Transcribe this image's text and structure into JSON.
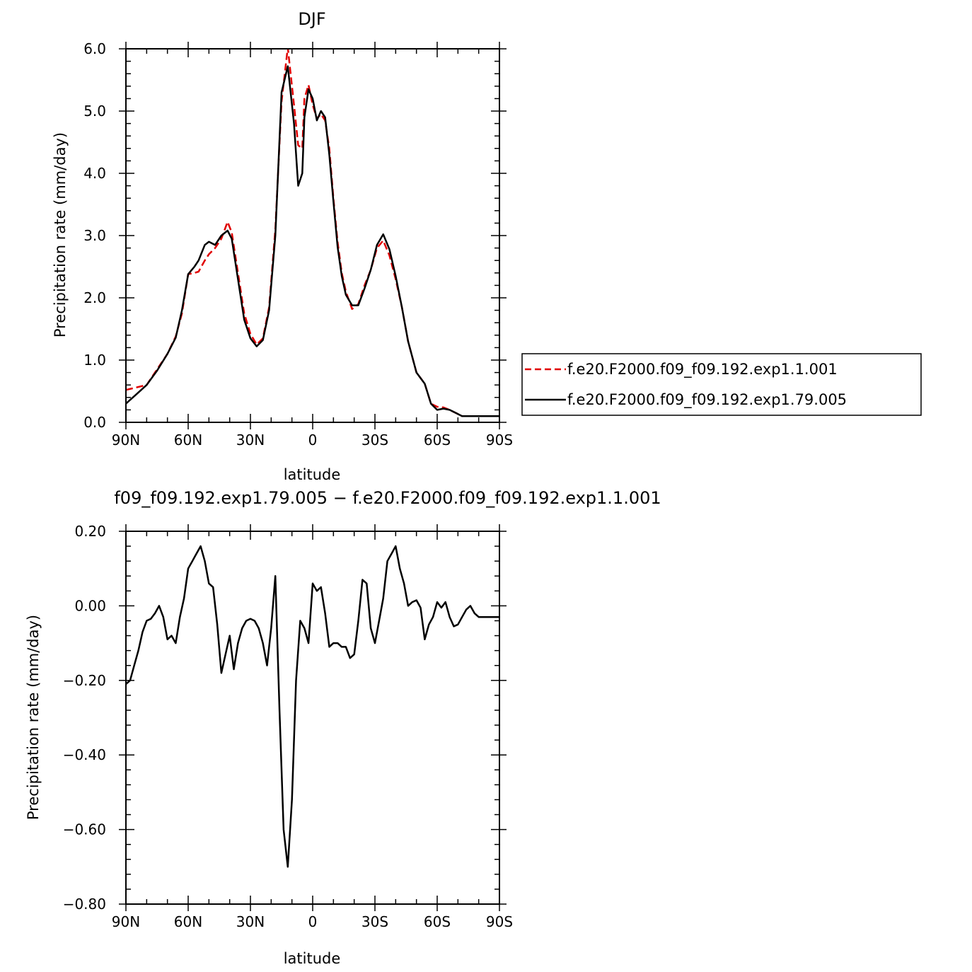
{
  "chart_data": [
    {
      "type": "line",
      "title": "DJF",
      "xlabel": "latitude",
      "ylabel": "Precipitation rate (mm/day)",
      "xlim": [
        -90,
        90
      ],
      "ylim": [
        0,
        6
      ],
      "x_ticks": [
        -90,
        -60,
        -30,
        0,
        30,
        60,
        90
      ],
      "x_tick_labels": [
        "90N",
        "60N",
        "30N",
        "0",
        "30S",
        "60S",
        "90S"
      ],
      "y_ticks": [
        0,
        1,
        2,
        3,
        4,
        5,
        6
      ],
      "y_tick_labels": [
        "0.0",
        "1.0",
        "2.0",
        "3.0",
        "4.0",
        "5.0",
        "6.0"
      ],
      "grid": false,
      "legend_position": "right",
      "series": [
        {
          "name": "f.e20.F2000.f09_f09.192.exp1.1.001",
          "color": "#e00000",
          "style": "dashed",
          "x": [
            -90,
            -85,
            -80,
            -75,
            -70,
            -66,
            -63,
            -60,
            -57,
            -55,
            -52,
            -50,
            -47,
            -44,
            -41,
            -39,
            -36,
            -33,
            -30,
            -27,
            -24,
            -21,
            -18,
            -15,
            -12,
            -9,
            -7,
            -5,
            -4,
            -2,
            0,
            2,
            4,
            6,
            8,
            10,
            12,
            14,
            16,
            19,
            22,
            25,
            28,
            31,
            34,
            37,
            40,
            43,
            46,
            50,
            54,
            57,
            60,
            63,
            66,
            69,
            72,
            75,
            78,
            81,
            84,
            87,
            90
          ],
          "y": [
            0.52,
            0.56,
            0.6,
            0.85,
            1.1,
            1.38,
            1.75,
            2.38,
            2.4,
            2.42,
            2.6,
            2.7,
            2.8,
            2.95,
            3.22,
            3.05,
            2.4,
            1.75,
            1.42,
            1.25,
            1.35,
            1.85,
            3.1,
            5.15,
            6.02,
            5.1,
            4.45,
            4.4,
            5.2,
            5.42,
            5.1,
            4.88,
            4.95,
            4.85,
            4.4,
            3.6,
            2.9,
            2.4,
            2.1,
            1.82,
            1.9,
            2.2,
            2.45,
            2.8,
            2.92,
            2.68,
            2.3,
            1.85,
            1.3,
            0.8,
            0.62,
            0.3,
            0.25,
            0.24,
            0.2,
            0.15,
            0.1,
            0.1,
            0.1,
            0.1,
            0.1,
            0.1,
            0.1
          ]
        },
        {
          "name": "f.e20.F2000.f09_f09.192.exp1.79.005",
          "color": "#000000",
          "style": "solid",
          "x": [
            -90,
            -85,
            -80,
            -75,
            -70,
            -66,
            -63,
            -60,
            -57,
            -55,
            -52,
            -50,
            -47,
            -44,
            -41,
            -39,
            -36,
            -33,
            -30,
            -27,
            -24,
            -21,
            -18,
            -15,
            -12,
            -9,
            -7,
            -5,
            -4,
            -2,
            0,
            2,
            4,
            6,
            8,
            10,
            12,
            14,
            16,
            19,
            22,
            25,
            28,
            31,
            34,
            37,
            40,
            43,
            46,
            50,
            54,
            57,
            60,
            63,
            66,
            69,
            72,
            75,
            78,
            81,
            84,
            87,
            90
          ],
          "y": [
            0.3,
            0.45,
            0.6,
            0.83,
            1.1,
            1.36,
            1.8,
            2.38,
            2.5,
            2.6,
            2.85,
            2.9,
            2.85,
            3.0,
            3.08,
            2.95,
            2.3,
            1.65,
            1.35,
            1.22,
            1.32,
            1.8,
            3.0,
            5.3,
            5.72,
            4.8,
            3.8,
            4.0,
            4.9,
            5.35,
            5.2,
            4.85,
            5.0,
            4.9,
            4.3,
            3.55,
            2.82,
            2.35,
            2.05,
            1.88,
            1.88,
            2.15,
            2.45,
            2.85,
            3.02,
            2.78,
            2.35,
            1.85,
            1.3,
            0.8,
            0.62,
            0.3,
            0.2,
            0.22,
            0.2,
            0.15,
            0.1,
            0.1,
            0.1,
            0.1,
            0.1,
            0.1,
            0.1
          ]
        }
      ]
    },
    {
      "type": "line",
      "title": "f09_f09.192.exp1.79.005 − f.e20.F2000.f09_f09.192.exp1.1.001",
      "xlabel": "latitude",
      "ylabel": "Precipitation rate (mm/day)",
      "xlim": [
        -90,
        90
      ],
      "ylim": [
        -0.8,
        0.2
      ],
      "x_ticks": [
        -90,
        -60,
        -30,
        0,
        30,
        60,
        90
      ],
      "x_tick_labels": [
        "90N",
        "60N",
        "30N",
        "0",
        "30S",
        "60S",
        "90S"
      ],
      "y_ticks": [
        -0.8,
        -0.6,
        -0.4,
        -0.2,
        0.0,
        0.2
      ],
      "y_tick_labels": [
        "−0.80",
        "−0.60",
        "−0.40",
        "−0.20",
        "0.00",
        "0.20"
      ],
      "grid": false,
      "series": [
        {
          "color": "#000000",
          "style": "solid",
          "x": [
            -90,
            -88,
            -86,
            -84,
            -82,
            -80,
            -78,
            -76,
            -74,
            -72,
            -70,
            -68,
            -66,
            -64,
            -62,
            -60,
            -58,
            -56,
            -54,
            -52,
            -50,
            -48,
            -46,
            -44,
            -42,
            -40,
            -38,
            -36,
            -34,
            -32,
            -30,
            -28,
            -26,
            -24,
            -22,
            -20,
            -18,
            -16,
            -14,
            -12,
            -10,
            -8,
            -6,
            -4,
            -2,
            0,
            2,
            4,
            6,
            8,
            10,
            12,
            14,
            16,
            18,
            20,
            22,
            24,
            26,
            28,
            30,
            32,
            34,
            36,
            38,
            40,
            42,
            44,
            46,
            48,
            50,
            52,
            54,
            56,
            58,
            60,
            62,
            64,
            66,
            68,
            70,
            72,
            74,
            76,
            78,
            80,
            82,
            84,
            86,
            88,
            90
          ],
          "y": [
            -0.21,
            -0.2,
            -0.16,
            -0.12,
            -0.07,
            -0.04,
            -0.035,
            -0.02,
            0.0,
            -0.03,
            -0.09,
            -0.08,
            -0.1,
            -0.03,
            0.02,
            0.1,
            0.12,
            0.14,
            0.16,
            0.12,
            0.06,
            0.05,
            -0.05,
            -0.18,
            -0.13,
            -0.08,
            -0.17,
            -0.1,
            -0.06,
            -0.04,
            -0.035,
            -0.04,
            -0.06,
            -0.1,
            -0.16,
            -0.06,
            0.08,
            -0.28,
            -0.6,
            -0.7,
            -0.52,
            -0.2,
            -0.04,
            -0.06,
            -0.1,
            0.06,
            0.04,
            0.05,
            -0.02,
            -0.11,
            -0.1,
            -0.1,
            -0.11,
            -0.11,
            -0.14,
            -0.13,
            -0.04,
            0.07,
            0.06,
            -0.06,
            -0.1,
            -0.04,
            0.02,
            0.12,
            0.14,
            0.16,
            0.1,
            0.06,
            0.0,
            0.01,
            0.015,
            -0.005,
            -0.09,
            -0.05,
            -0.03,
            0.01,
            -0.005,
            0.01,
            -0.03,
            -0.055,
            -0.05,
            -0.03,
            -0.01,
            0.0,
            -0.02,
            -0.03,
            -0.03,
            -0.03,
            -0.03,
            -0.03,
            -0.03
          ]
        }
      ]
    }
  ]
}
